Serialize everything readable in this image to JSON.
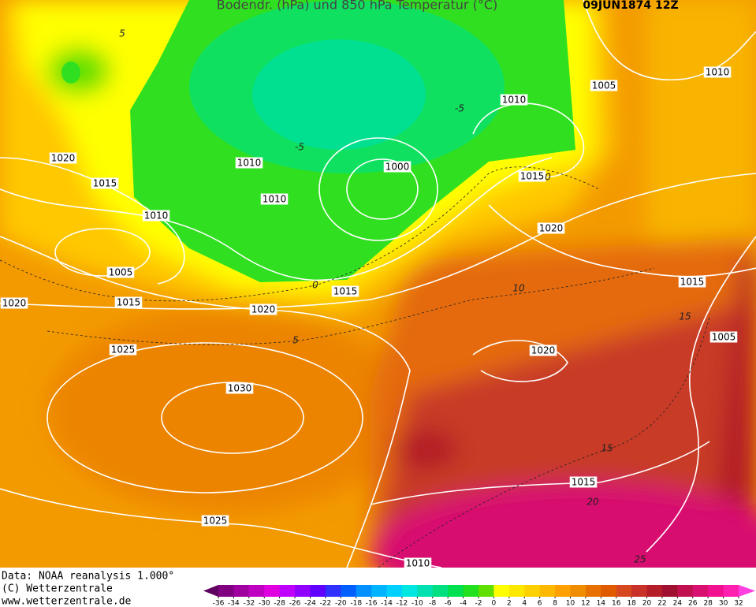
{
  "title": "Bodendr. (hPa) und 850 hPa Temperatur (°C)",
  "date": "09JUN1874 12Z",
  "isobar_labels": [
    1020,
    1015,
    1010,
    1005,
    1020,
    1015,
    1020,
    1015,
    1025,
    1030,
    1025,
    1010,
    1010,
    1010,
    1000,
    1010,
    1005,
    1010,
    1015,
    1020,
    1015,
    1005,
    1020,
    1015
  ],
  "isotherm_labels": [
    5,
    -5,
    -5,
    0,
    5,
    0,
    10,
    15,
    15,
    20,
    25
  ],
  "footer": [
    "Data: NOAA reanalysis 1.000°",
    "(C) Wetterzentrale",
    "www.wetterzentrale.de"
  ],
  "colorbar": {
    "ticks": [
      -36,
      -34,
      -32,
      -30,
      -28,
      -26,
      -24,
      -22,
      -20,
      -18,
      -16,
      -14,
      -12,
      -10,
      -8,
      -6,
      -4,
      -2,
      0,
      2,
      4,
      6,
      8,
      10,
      12,
      14,
      16,
      18,
      20,
      22,
      24,
      26,
      28,
      30,
      32
    ],
    "colors": [
      "#600060",
      "#800080",
      "#a000a0",
      "#c000c0",
      "#e000e0",
      "#c000ff",
      "#9000ff",
      "#6000ff",
      "#3030ff",
      "#0060ff",
      "#0090ff",
      "#00b4ff",
      "#00d0ff",
      "#00e6e0",
      "#00e0b0",
      "#00e080",
      "#00e050",
      "#20e020",
      "#60e000",
      "#ffff00",
      "#ffe800",
      "#ffd000",
      "#ffb800",
      "#ffa000",
      "#f08c00",
      "#e87000",
      "#e05a00",
      "#d84820",
      "#c83228",
      "#b41e28",
      "#a01030",
      "#c01050",
      "#d81070",
      "#f01090",
      "#ff20b0",
      "#ff40e0"
    ]
  }
}
